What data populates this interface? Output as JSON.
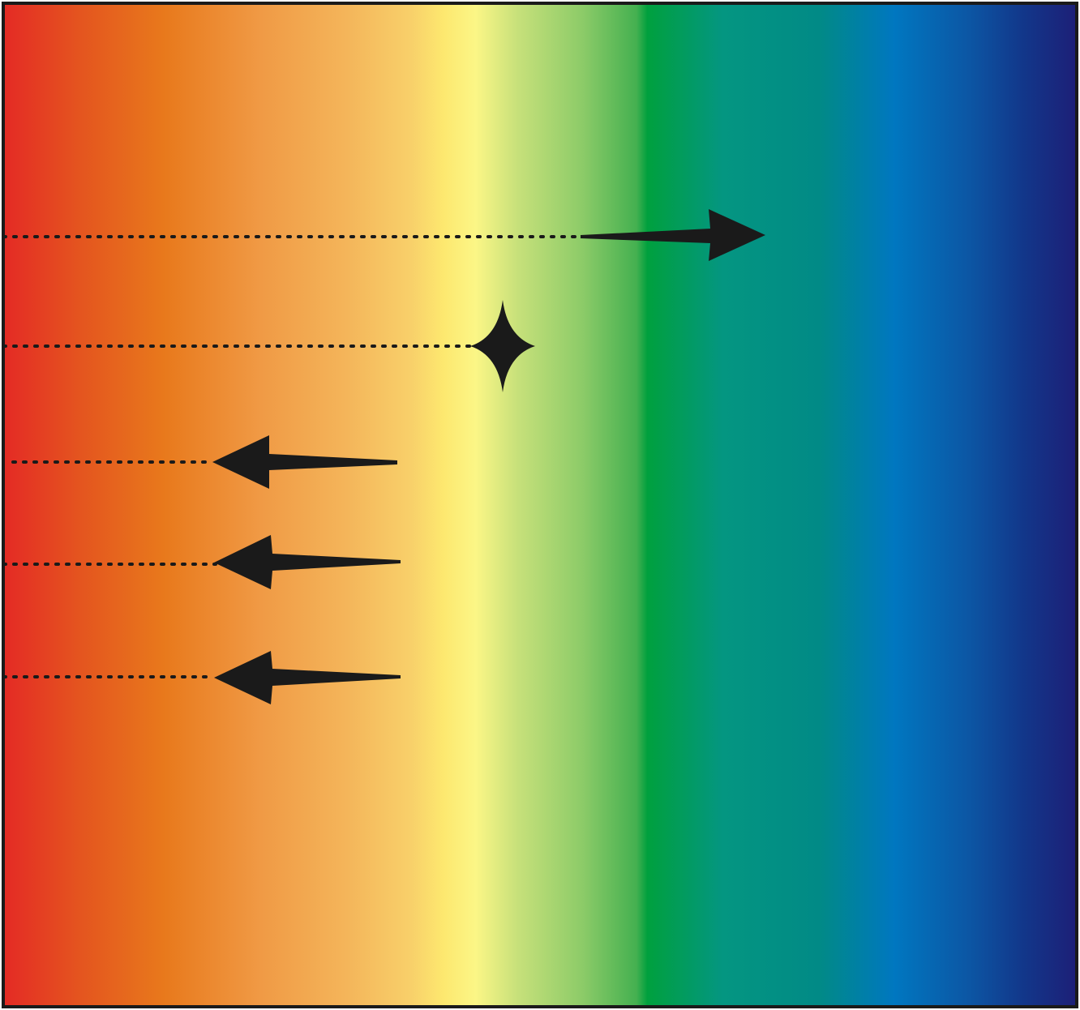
{
  "spectrum": {
    "colors": [
      "#e42a25",
      "#e4541f",
      "#e8791c",
      "#f09a45",
      "#f4b55a",
      "#f8d06a",
      "#fde86f",
      "#fbf686",
      "#c6e07a",
      "#8ccb68",
      "#44b050",
      "#00a03e",
      "#049681",
      "#018a86",
      "#0077c0",
      "#0c56a4",
      "#12378a",
      "#1d1f77"
    ],
    "frame_color": "#1a1a1a"
  },
  "markers": [
    {
      "name": "right-arrow-marker",
      "shape": "arrow-right",
      "color": "#1a1a1a"
    },
    {
      "name": "star-marker",
      "shape": "four-point-star",
      "color": "#1a1a1a"
    },
    {
      "name": "left-arrow-marker-1",
      "shape": "arrow-left",
      "color": "#1a1a1a"
    },
    {
      "name": "left-arrow-marker-2",
      "shape": "arrow-left",
      "color": "#1a1a1a"
    },
    {
      "name": "left-arrow-marker-3",
      "shape": "arrow-left",
      "color": "#1a1a1a"
    }
  ]
}
